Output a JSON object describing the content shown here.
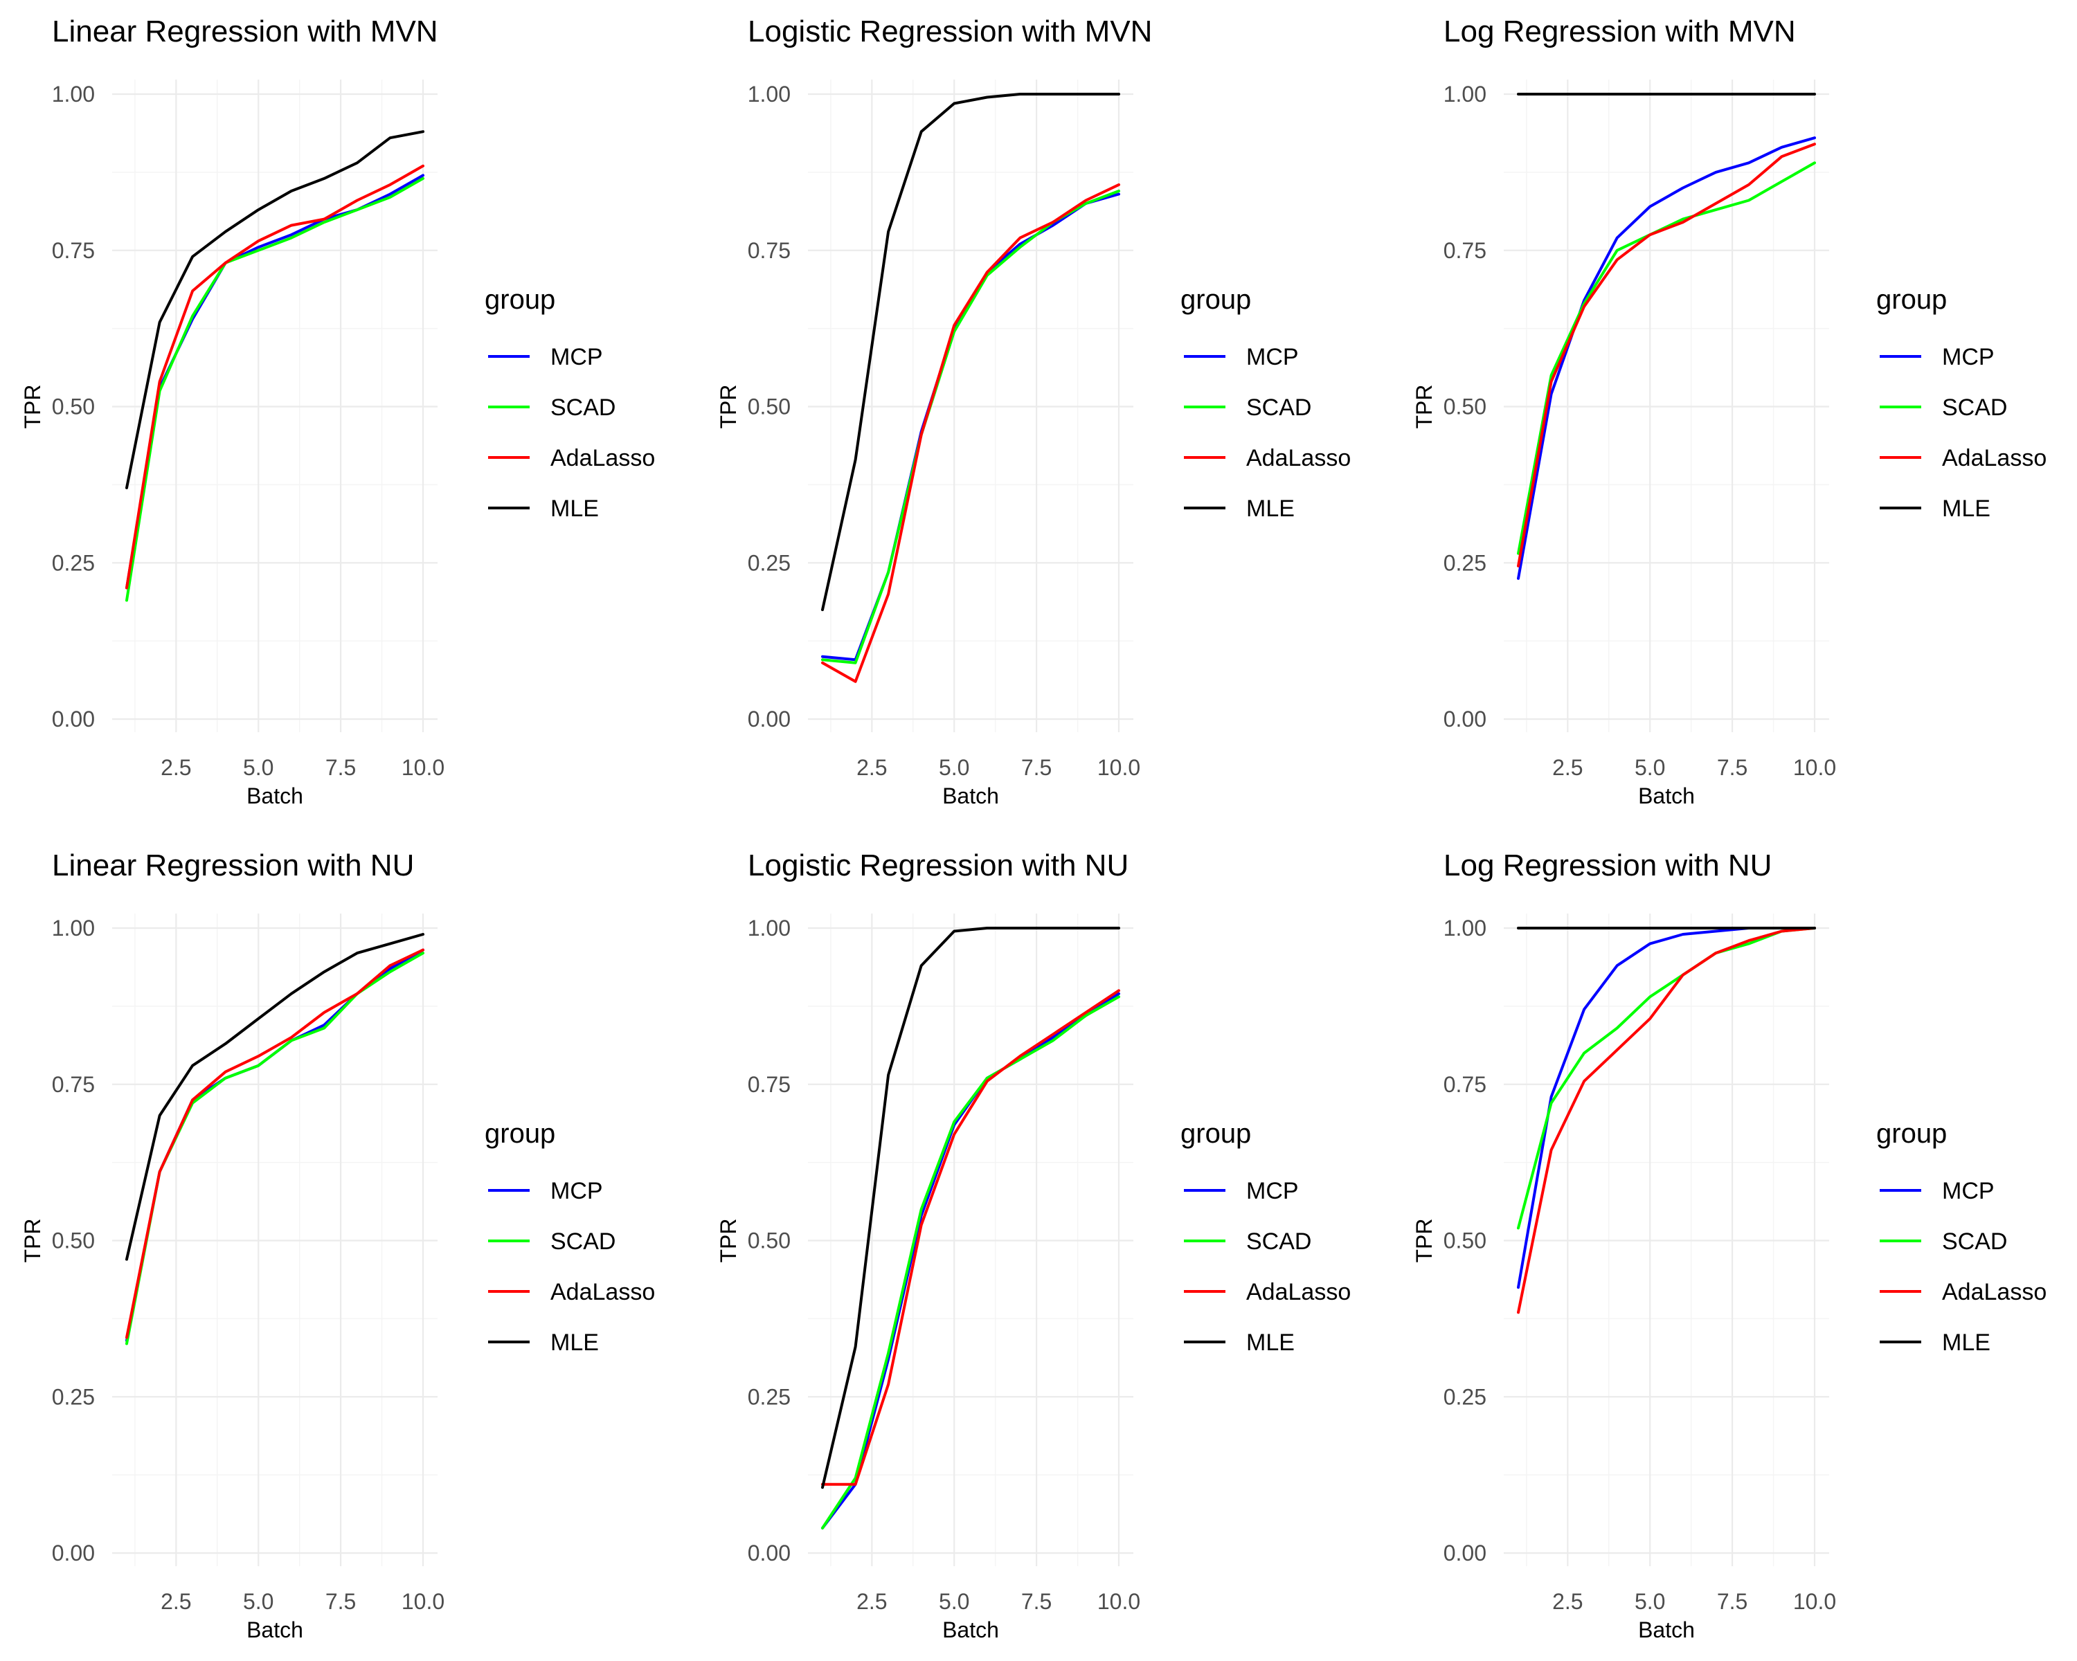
{
  "legend_title": "group",
  "legend_entries": [
    {
      "name": "MCP",
      "color": "#0000ff"
    },
    {
      "name": "SCAD",
      "color": "#00ff00"
    },
    {
      "name": "AdaLasso",
      "color": "#ff0000"
    },
    {
      "name": "MLE",
      "color": "#000000"
    }
  ],
  "chart_data": [
    {
      "type": "line",
      "title": "Linear Regression with MVN",
      "xlabel": "Batch",
      "ylabel": "TPR",
      "xlim": [
        1,
        10
      ],
      "ylim": [
        0,
        1
      ],
      "xticks": [
        "2.5",
        "5.0",
        "7.5",
        "10.0"
      ],
      "yticks": [
        "0.00",
        "0.25",
        "0.50",
        "0.75",
        "1.00"
      ],
      "x": [
        1,
        2,
        3,
        4,
        5,
        6,
        7,
        8,
        9,
        10
      ],
      "series": [
        {
          "name": "MCP",
          "values": [
            0.21,
            0.53,
            0.64,
            0.73,
            0.755,
            0.775,
            0.8,
            0.815,
            0.84,
            0.87
          ]
        },
        {
          "name": "SCAD",
          "values": [
            0.19,
            0.525,
            0.645,
            0.73,
            0.75,
            0.77,
            0.795,
            0.815,
            0.835,
            0.865
          ]
        },
        {
          "name": "AdaLasso",
          "values": [
            0.21,
            0.54,
            0.685,
            0.73,
            0.765,
            0.79,
            0.8,
            0.83,
            0.855,
            0.885
          ]
        },
        {
          "name": "MLE",
          "values": [
            0.37,
            0.635,
            0.74,
            0.78,
            0.815,
            0.845,
            0.865,
            0.89,
            0.93,
            0.94
          ]
        }
      ]
    },
    {
      "type": "line",
      "title": "Logistic Regression with MVN",
      "xlabel": "Batch",
      "ylabel": "TPR",
      "xlim": [
        1,
        10
      ],
      "ylim": [
        0,
        1
      ],
      "xticks": [
        "2.5",
        "5.0",
        "7.5",
        "10.0"
      ],
      "yticks": [
        "0.00",
        "0.25",
        "0.50",
        "0.75",
        "1.00"
      ],
      "x": [
        1,
        2,
        3,
        4,
        5,
        6,
        7,
        8,
        9,
        10
      ],
      "series": [
        {
          "name": "MCP",
          "values": [
            0.1,
            0.095,
            0.235,
            0.46,
            0.625,
            0.715,
            0.76,
            0.79,
            0.825,
            0.84
          ]
        },
        {
          "name": "SCAD",
          "values": [
            0.095,
            0.09,
            0.235,
            0.455,
            0.62,
            0.71,
            0.755,
            0.795,
            0.825,
            0.845
          ]
        },
        {
          "name": "AdaLasso",
          "values": [
            0.09,
            0.06,
            0.2,
            0.455,
            0.63,
            0.715,
            0.77,
            0.795,
            0.83,
            0.855
          ]
        },
        {
          "name": "MLE",
          "values": [
            0.175,
            0.415,
            0.78,
            0.94,
            0.985,
            0.995,
            1.0,
            1.0,
            1.0,
            1.0
          ]
        }
      ]
    },
    {
      "type": "line",
      "title": "Log Regression with MVN",
      "xlabel": "Batch",
      "ylabel": "TPR",
      "xlim": [
        1,
        10
      ],
      "ylim": [
        0,
        1
      ],
      "xticks": [
        "2.5",
        "5.0",
        "7.5",
        "10.0"
      ],
      "yticks": [
        "0.00",
        "0.25",
        "0.50",
        "0.75",
        "1.00"
      ],
      "x": [
        1,
        2,
        3,
        4,
        5,
        6,
        7,
        8,
        9,
        10
      ],
      "series": [
        {
          "name": "MCP",
          "values": [
            0.225,
            0.52,
            0.67,
            0.77,
            0.82,
            0.85,
            0.875,
            0.89,
            0.915,
            0.93
          ]
        },
        {
          "name": "SCAD",
          "values": [
            0.265,
            0.55,
            0.665,
            0.75,
            0.775,
            0.8,
            0.815,
            0.83,
            0.86,
            0.89
          ]
        },
        {
          "name": "AdaLasso",
          "values": [
            0.245,
            0.54,
            0.66,
            0.735,
            0.775,
            0.795,
            0.825,
            0.855,
            0.9,
            0.92
          ]
        },
        {
          "name": "MLE",
          "values": [
            1.0,
            1.0,
            1.0,
            1.0,
            1.0,
            1.0,
            1.0,
            1.0,
            1.0,
            1.0
          ]
        }
      ]
    },
    {
      "type": "line",
      "title": "Linear Regression with NU",
      "xlabel": "Batch",
      "ylabel": "TPR",
      "xlim": [
        1,
        10
      ],
      "ylim": [
        0,
        1
      ],
      "xticks": [
        "2.5",
        "5.0",
        "7.5",
        "10.0"
      ],
      "yticks": [
        "0.00",
        "0.25",
        "0.50",
        "0.75",
        "1.00"
      ],
      "x": [
        1,
        2,
        3,
        4,
        5,
        6,
        7,
        8,
        9,
        10
      ],
      "series": [
        {
          "name": "MCP",
          "values": [
            0.34,
            0.61,
            0.725,
            0.76,
            0.78,
            0.82,
            0.845,
            0.895,
            0.935,
            0.965
          ]
        },
        {
          "name": "SCAD",
          "values": [
            0.335,
            0.61,
            0.72,
            0.76,
            0.78,
            0.82,
            0.84,
            0.895,
            0.93,
            0.96
          ]
        },
        {
          "name": "AdaLasso",
          "values": [
            0.345,
            0.61,
            0.725,
            0.77,
            0.795,
            0.825,
            0.865,
            0.895,
            0.94,
            0.965
          ]
        },
        {
          "name": "MLE",
          "values": [
            0.47,
            0.7,
            0.78,
            0.815,
            0.855,
            0.895,
            0.93,
            0.96,
            0.975,
            0.99
          ]
        }
      ]
    },
    {
      "type": "line",
      "title": "Logistic Regression with NU",
      "xlabel": "Batch",
      "ylabel": "TPR",
      "xlim": [
        1,
        10
      ],
      "ylim": [
        0,
        1
      ],
      "xticks": [
        "2.5",
        "5.0",
        "7.5",
        "10.0"
      ],
      "yticks": [
        "0.00",
        "0.25",
        "0.50",
        "0.75",
        "1.00"
      ],
      "x": [
        1,
        2,
        3,
        4,
        5,
        6,
        7,
        8,
        9,
        10
      ],
      "series": [
        {
          "name": "MCP",
          "values": [
            0.04,
            0.11,
            0.31,
            0.54,
            0.685,
            0.76,
            0.79,
            0.825,
            0.86,
            0.895
          ]
        },
        {
          "name": "SCAD",
          "values": [
            0.04,
            0.12,
            0.32,
            0.55,
            0.69,
            0.76,
            0.79,
            0.82,
            0.86,
            0.89
          ]
        },
        {
          "name": "AdaLasso",
          "values": [
            0.11,
            0.11,
            0.27,
            0.525,
            0.67,
            0.755,
            0.795,
            0.83,
            0.865,
            0.9
          ]
        },
        {
          "name": "MLE",
          "values": [
            0.105,
            0.33,
            0.765,
            0.94,
            0.995,
            1.0,
            1.0,
            1.0,
            1.0,
            1.0
          ]
        }
      ]
    },
    {
      "type": "line",
      "title": "Log Regression with NU",
      "xlabel": "Batch",
      "ylabel": "TPR",
      "xlim": [
        1,
        10
      ],
      "ylim": [
        0,
        1
      ],
      "xticks": [
        "2.5",
        "5.0",
        "7.5",
        "10.0"
      ],
      "yticks": [
        "0.00",
        "0.25",
        "0.50",
        "0.75",
        "1.00"
      ],
      "x": [
        1,
        2,
        3,
        4,
        5,
        6,
        7,
        8,
        9,
        10
      ],
      "series": [
        {
          "name": "MCP",
          "values": [
            0.425,
            0.73,
            0.87,
            0.94,
            0.975,
            0.99,
            0.995,
            1.0,
            1.0,
            1.0
          ]
        },
        {
          "name": "SCAD",
          "values": [
            0.52,
            0.72,
            0.8,
            0.84,
            0.89,
            0.925,
            0.96,
            0.975,
            0.995,
            1.0
          ]
        },
        {
          "name": "AdaLasso",
          "values": [
            0.385,
            0.645,
            0.755,
            0.805,
            0.855,
            0.925,
            0.96,
            0.98,
            0.995,
            1.0
          ]
        },
        {
          "name": "MLE",
          "values": [
            1.0,
            1.0,
            1.0,
            1.0,
            1.0,
            1.0,
            1.0,
            1.0,
            1.0,
            1.0
          ]
        }
      ]
    }
  ]
}
